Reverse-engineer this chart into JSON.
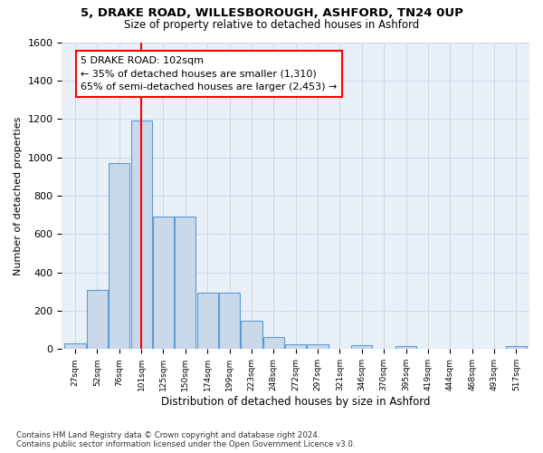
{
  "title1": "5, DRAKE ROAD, WILLESBOROUGH, ASHFORD, TN24 0UP",
  "title2": "Size of property relative to detached houses in Ashford",
  "xlabel": "Distribution of detached houses by size in Ashford",
  "ylabel": "Number of detached properties",
  "footnote": "Contains HM Land Registry data © Crown copyright and database right 2024.\nContains public sector information licensed under the Open Government Licence v3.0.",
  "bar_color": "#c9d9ea",
  "bar_edge_color": "#5b9bd5",
  "categories": [
    "27sqm",
    "52sqm",
    "76sqm",
    "101sqm",
    "125sqm",
    "150sqm",
    "174sqm",
    "199sqm",
    "223sqm",
    "248sqm",
    "272sqm",
    "297sqm",
    "321sqm",
    "346sqm",
    "370sqm",
    "395sqm",
    "419sqm",
    "444sqm",
    "468sqm",
    "493sqm",
    "517sqm"
  ],
  "values": [
    30,
    310,
    970,
    1190,
    690,
    690,
    295,
    295,
    150,
    65,
    25,
    25,
    0,
    20,
    0,
    15,
    0,
    0,
    0,
    0,
    15
  ],
  "ylim": [
    0,
    1600
  ],
  "yticks": [
    0,
    200,
    400,
    600,
    800,
    1000,
    1200,
    1400,
    1600
  ],
  "property_label": "5 DRAKE ROAD: 102sqm",
  "annotation_line1": "← 35% of detached houses are smaller (1,310)",
  "annotation_line2": "65% of semi-detached houses are larger (2,453) →",
  "vline_x_index": 3.0,
  "grid_color": "#cdd8e8",
  "bg_color": "#eaf0f8"
}
